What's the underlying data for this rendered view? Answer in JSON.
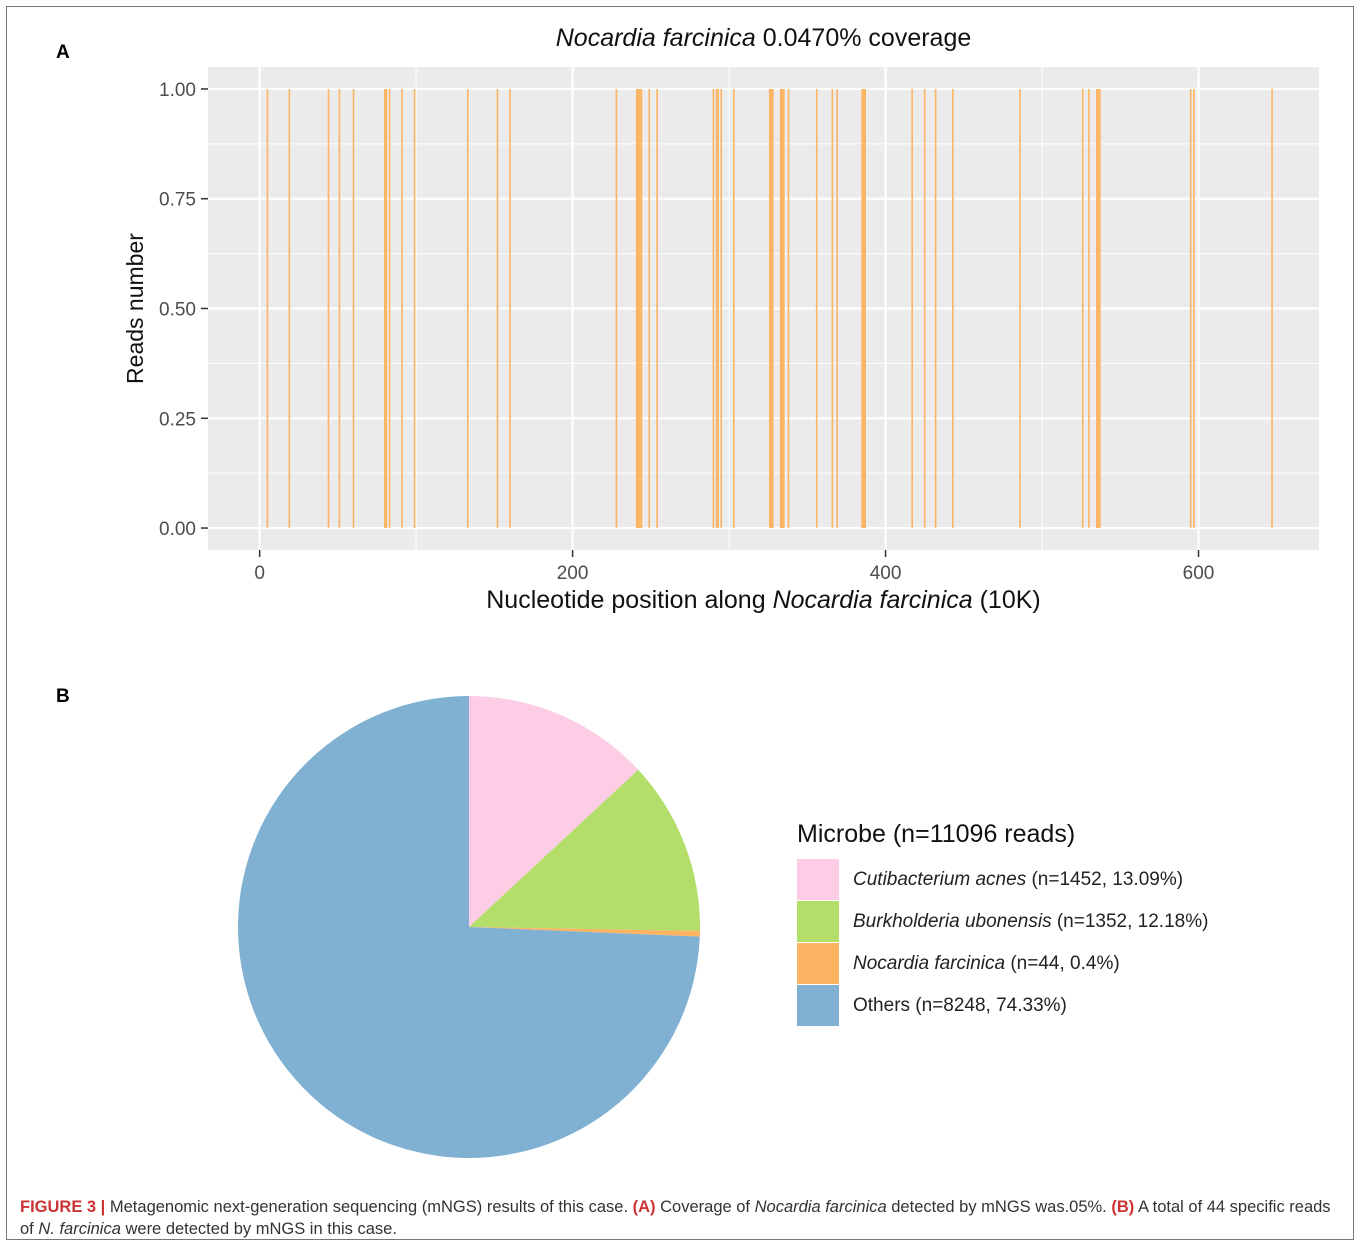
{
  "figure": {
    "caption_label": "FIGURE 3 |",
    "caption_text_1": " Metagenomic next-generation sequencing (mNGS) results of this case. ",
    "caption_ref_a": "(A)",
    "caption_text_2": " Coverage of ",
    "caption_italic_1": "Nocardia farcinica",
    "caption_text_3": " detected by mNGS was.05%. ",
    "caption_ref_b": "(B)",
    "caption_text_4": " A total of 44 specific reads of ",
    "caption_italic_2": "N. farcinica",
    "caption_text_5": " were detected by mNGS in this case."
  },
  "panels": {
    "a_letter": "A",
    "b_letter": "B"
  },
  "chart_data": [
    {
      "type": "bar",
      "panel": "A",
      "title_italic": "Nocardia farcinica",
      "title_rest": " 0.0470% coverage",
      "xlabel_prefix": "Nucleotide position along ",
      "xlabel_italic": "Nocardia farcinica",
      "xlabel_suffix": " (10K)",
      "ylabel": "Reads number",
      "xlim": [
        -33,
        677
      ],
      "ylim": [
        -0.05,
        1.05
      ],
      "x_ticks": [
        0,
        200,
        400,
        600
      ],
      "y_ticks": [
        0.0,
        0.25,
        0.5,
        0.75,
        1.0
      ],
      "y_tick_labels": [
        "0.00",
        "0.25",
        "0.50",
        "0.75",
        "1.00"
      ],
      "grid": true,
      "bar_color": "#FDB462",
      "panel_background": "#EBEBEB",
      "x": [
        5,
        19,
        44,
        51,
        60,
        80,
        81,
        83,
        91,
        99,
        133,
        152,
        160,
        228,
        241,
        242,
        243,
        244,
        249,
        254,
        290,
        292,
        293,
        295,
        303,
        326,
        327,
        328,
        333,
        334,
        335,
        338,
        356,
        366,
        369,
        385,
        386,
        387,
        417,
        425,
        432,
        443,
        486,
        526,
        530,
        535,
        536,
        537,
        595,
        597,
        647
      ],
      "values": [
        1,
        1,
        1,
        1,
        1,
        1,
        1,
        1,
        1,
        1,
        1,
        1,
        1,
        1,
        1,
        1,
        1,
        1,
        1,
        1,
        1,
        1,
        1,
        1,
        1,
        1,
        1,
        1,
        1,
        1,
        1,
        1,
        1,
        1,
        1,
        1,
        1,
        1,
        1,
        1,
        1,
        1,
        1,
        1,
        1,
        1,
        1,
        1,
        1,
        1,
        1
      ]
    },
    {
      "type": "pie",
      "panel": "B",
      "legend_title": "Microbe (n=11096 reads)",
      "legend_position": "right",
      "slices": [
        {
          "italic": "Cutibacterium acnes",
          "rest": " (n=1452, 13.09%)",
          "value": 1452,
          "color": "#FCCDE5"
        },
        {
          "italic": "Burkholderia ubonensis",
          "rest": " (n=1352, 12.18%)",
          "value": 1352,
          "color": "#B3DE69"
        },
        {
          "italic": "Nocardia farcinica",
          "rest": " (n=44, 0.4%)",
          "value": 44,
          "color": "#FDB462"
        },
        {
          "italic": "",
          "rest": "Others (n=8248, 74.33%)",
          "value": 8248,
          "color": "#80B1D3"
        }
      ]
    }
  ]
}
